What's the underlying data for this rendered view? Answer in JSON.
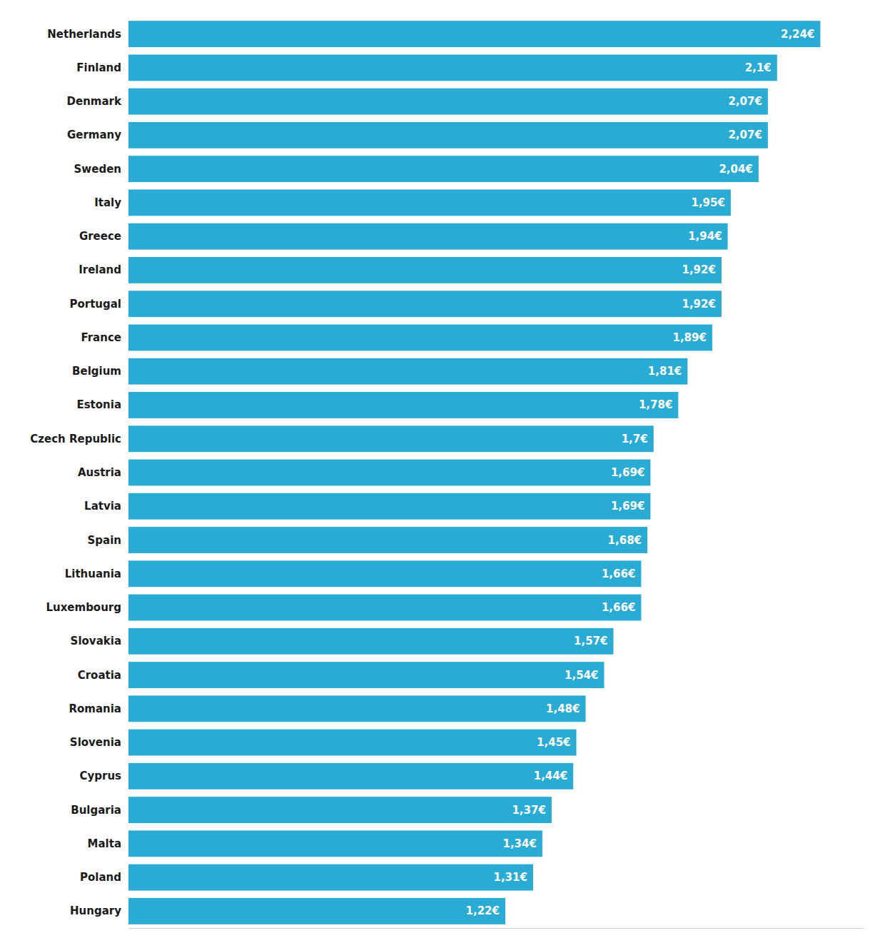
{
  "chart_data": {
    "type": "bar",
    "orientation": "horizontal",
    "categories": [
      "Netherlands",
      "Finland",
      "Denmark",
      "Germany",
      "Sweden",
      "Italy",
      "Greece",
      "Ireland",
      "Portugal",
      "France",
      "Belgium",
      "Estonia",
      "Czech Republic",
      "Austria",
      "Latvia",
      "Spain",
      "Lithuania",
      "Luxembourg",
      "Slovakia",
      "Croatia",
      "Romania",
      "Slovenia",
      "Cyprus",
      "Bulgaria",
      "Malta",
      "Poland",
      "Hungary"
    ],
    "values": [
      2.24,
      2.1,
      2.07,
      2.07,
      2.04,
      1.95,
      1.94,
      1.92,
      1.92,
      1.89,
      1.81,
      1.78,
      1.7,
      1.69,
      1.69,
      1.68,
      1.66,
      1.66,
      1.57,
      1.54,
      1.48,
      1.45,
      1.44,
      1.37,
      1.34,
      1.31,
      1.22
    ],
    "value_labels": [
      "2,24€",
      "2,1€",
      "2,07€",
      "2,07€",
      "2,04€",
      "1,95€",
      "1,94€",
      "1,92€",
      "1,92€",
      "1,89€",
      "1,81€",
      "1,78€",
      "1,7€",
      "1,69€",
      "1,69€",
      "1,68€",
      "1,66€",
      "1,66€",
      "1,57€",
      "1,54€",
      "1,48€",
      "1,45€",
      "1,44€",
      "1,37€",
      "1,34€",
      "1,31€",
      "1,22€"
    ],
    "color": "#29ABD4",
    "data_labels": true,
    "xlim": [
      0,
      2.38
    ],
    "tick_labels": "y",
    "grid": false
  }
}
